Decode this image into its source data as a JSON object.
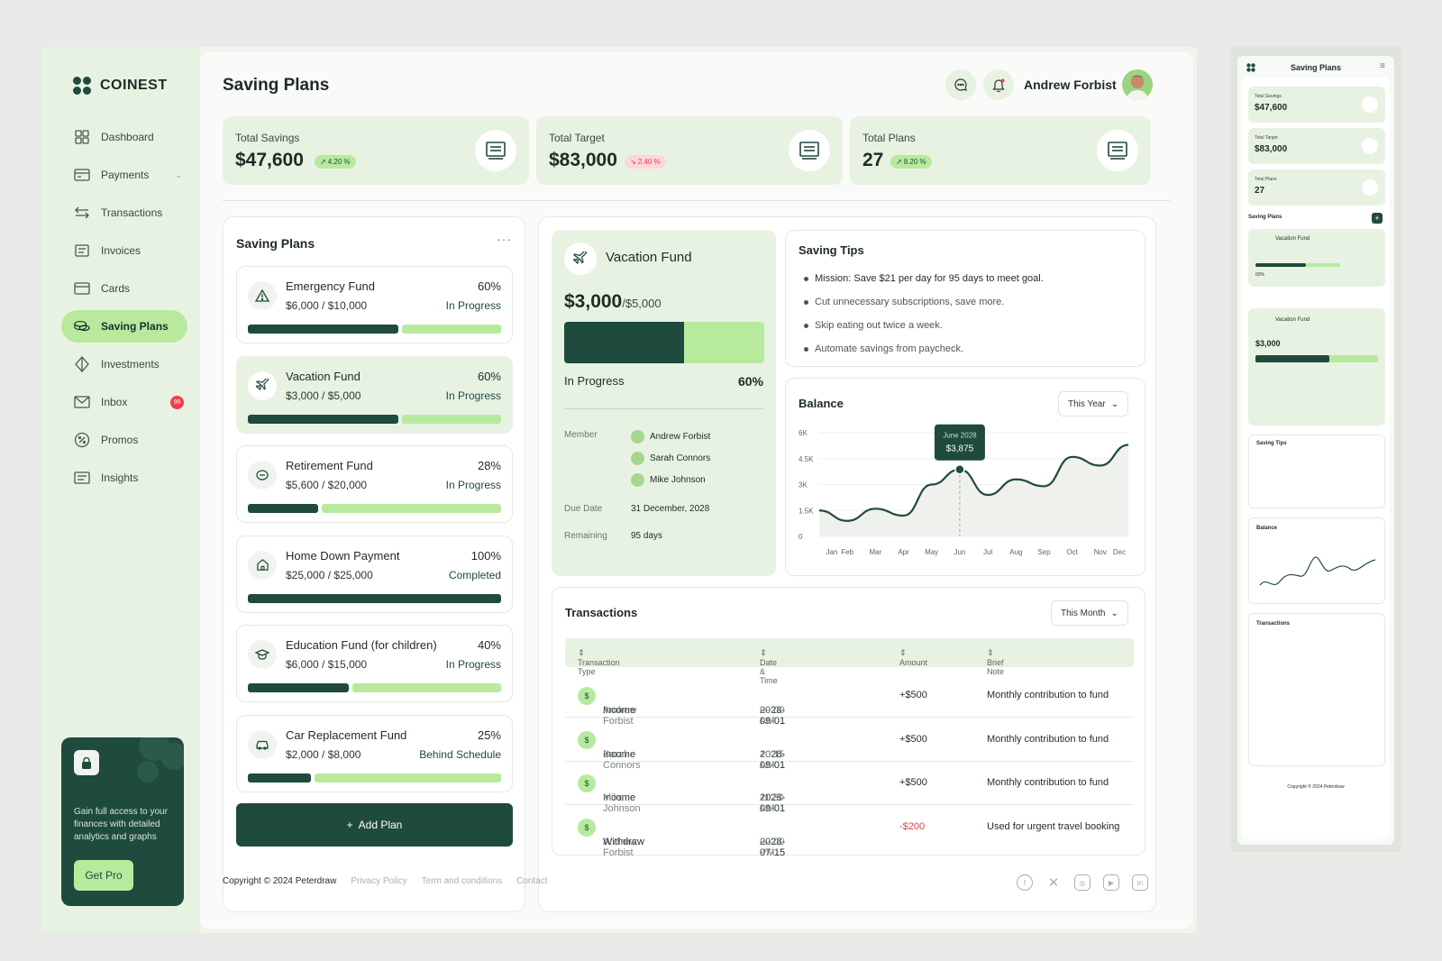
{
  "brand": {
    "name": "COINEST"
  },
  "nav": [
    {
      "label": "Dashboard",
      "icon": "grid-icon"
    },
    {
      "label": "Payments",
      "icon": "wallet-icon"
    },
    {
      "label": "Transactions",
      "icon": "swap-icon"
    },
    {
      "label": "Invoices",
      "icon": "invoice-icon"
    },
    {
      "label": "Cards",
      "icon": "card-icon"
    },
    {
      "label": "Saving Plans",
      "icon": "coins-icon",
      "active": true
    },
    {
      "label": "Investments",
      "icon": "diamond-icon"
    },
    {
      "label": "Inbox",
      "icon": "mail-icon",
      "badge": "99"
    },
    {
      "label": "Promos",
      "icon": "percent-icon"
    },
    {
      "label": "Insights",
      "icon": "insights-icon"
    }
  ],
  "promo": {
    "text": "Gain full access to your finances with detailed analytics and graphs",
    "button": "Get Pro"
  },
  "header": {
    "title": "Saving Plans",
    "user": "Andrew Forbist"
  },
  "stats": [
    {
      "label": "Total Savings",
      "value": "$47,600",
      "change": "4.20 %",
      "trend": "up"
    },
    {
      "label": "Total Target",
      "value": "$83,000",
      "change": "2.40 %",
      "trend": "down"
    },
    {
      "label": "Total Plans",
      "value": "27",
      "change": "8.20 %",
      "trend": "up"
    }
  ],
  "plans": {
    "title": "Saving Plans",
    "items": [
      {
        "name": "Emergency Fund",
        "amount": "$6,000",
        "target": "$10,000",
        "pct": "60%",
        "progress": 0.6,
        "status": "In Progress",
        "icon": "warning-icon"
      },
      {
        "name": "Vacation Fund",
        "amount": "$3,000",
        "target": "$5,000",
        "pct": "60%",
        "progress": 0.6,
        "status": "In Progress",
        "icon": "plane-icon"
      },
      {
        "name": "Retirement Fund",
        "amount": "$5,600",
        "target": "$20,000",
        "pct": "28%",
        "progress": 0.28,
        "status": "In Progress",
        "icon": "piggy-icon"
      },
      {
        "name": "Home Down Payment",
        "amount": "$25,000",
        "target": "$25,000",
        "pct": "100%",
        "progress": 1.0,
        "status": "Completed",
        "icon": "home-icon"
      },
      {
        "name": "Education Fund (for children)",
        "amount": "$6,000",
        "target": "$15,000",
        "pct": "40%",
        "progress": 0.4,
        "status": "In Progress",
        "icon": "graduation-icon"
      },
      {
        "name": "Car Replacement Fund",
        "amount": "$2,000",
        "target": "$8,000",
        "pct": "25%",
        "progress": 0.25,
        "status": "Behind Schedule",
        "icon": "car-icon"
      }
    ],
    "add_label": "Add Plan"
  },
  "vacation": {
    "title": "Vacation Fund",
    "amount": "$3,000",
    "target": "/$5,000",
    "progress": 0.6,
    "status": "In Progress",
    "pct": "60%",
    "member_label": "Member",
    "members": [
      "Andrew Forbist",
      "Sarah Connors",
      "Mike Johnson"
    ],
    "due_label": "Due Date",
    "due": "31 December, 2028",
    "remaining_label": "Remaining",
    "remaining": "95 days"
  },
  "tips": {
    "title": "Saving Tips",
    "items": [
      "Mission: Save $21 per day for 95 days to meet goal.",
      "Cut unnecessary subscriptions, save more.",
      "Skip eating out twice a week.",
      "Automate savings from paycheck."
    ]
  },
  "balance": {
    "title": "Balance",
    "filter": "This Year",
    "tooltip_date": "June 2028",
    "tooltip_value": "$3,875"
  },
  "chart_data": {
    "type": "line",
    "x": [
      "Jan",
      "Feb",
      "Mar",
      "Apr",
      "May",
      "Jun",
      "Jul",
      "Aug",
      "Sep",
      "Oct",
      "Nov",
      "Dec"
    ],
    "series": [
      {
        "values": [
          1500,
          900,
          1600,
          1200,
          3000,
          3875,
          2400,
          3300,
          2900,
          4600,
          4100,
          5300
        ]
      }
    ],
    "y_ticks": [
      "0",
      "1.5K",
      "3K",
      "4.5K",
      "6K"
    ],
    "ylim": [
      0,
      6000
    ]
  },
  "transactions": {
    "title": "Transactions",
    "filter": "This Month",
    "columns": [
      "Transaction Type",
      "Date & Time",
      "Amount",
      "Brief Note"
    ],
    "rows": [
      {
        "type": "Income",
        "who": "Andrew Forbist",
        "date": "2028-09-01",
        "time": "09:00 AM",
        "amount": "+$500",
        "note": "Monthly contribution to fund"
      },
      {
        "type": "Income",
        "who": "Sarah Connors",
        "date": "2028-09-01",
        "time": "10:15 AM",
        "amount": "+$500",
        "note": "Monthly contribution to fund"
      },
      {
        "type": "Income",
        "who": "Mike Johnson",
        "date": "2028-09-01",
        "time": "11:30 AM",
        "amount": "+$500",
        "note": "Monthly contribution to fund"
      },
      {
        "type": "Withdraw",
        "who": "Andrew Forbist",
        "date": "2028-07-15",
        "time": "02:00 PM",
        "amount": "-$200",
        "note": "Used for urgent travel booking"
      }
    ]
  },
  "footer": {
    "copyright": "Copyright © 2024 Peterdraw",
    "links": [
      "Privacy Policy",
      "Term and conditions",
      "Contact"
    ]
  },
  "colors": {
    "primary": "#1f4a3e",
    "accent": "#b8ea9e",
    "surface": "#e8f2e3",
    "negative": "#e0424c"
  }
}
